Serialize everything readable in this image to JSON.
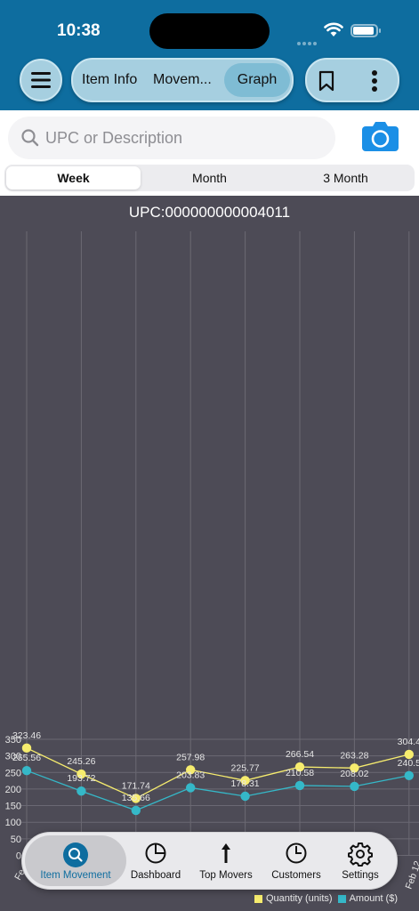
{
  "status": {
    "time": "10:38"
  },
  "nav": {
    "tabs": [
      {
        "label": "Item Info"
      },
      {
        "label": "Movem..."
      },
      {
        "label": "Graph",
        "selected": true
      }
    ]
  },
  "search": {
    "placeholder": "UPC or Description",
    "value": ""
  },
  "range": {
    "options": [
      {
        "label": "Week",
        "selected": true
      },
      {
        "label": "Month"
      },
      {
        "label": "3 Month"
      }
    ]
  },
  "chart_data": {
    "type": "line",
    "title": "UPC:000000000004011",
    "ylim": [
      0,
      370
    ],
    "yticks": [
      0,
      50,
      100,
      150,
      200,
      250,
      300,
      350
    ],
    "grid": true,
    "legend": "bottom-right",
    "x_visible": [
      "Fe",
      "Feb 12"
    ],
    "series": [
      {
        "name": "Quantity (units)",
        "color": "#f6ec6e",
        "values": [
          323.46,
          245.26,
          171.74,
          257.98,
          225.77,
          266.54,
          263.28,
          304.4
        ],
        "labels": [
          "323.46",
          "245.26",
          "171.74",
          "257.98",
          "225.77",
          "266.54",
          "263.28",
          "304.4"
        ]
      },
      {
        "name": "Amount ($)",
        "color": "#35b8c8",
        "values": [
          255.56,
          193.72,
          135.66,
          203.83,
          178.31,
          210.58,
          208.02,
          240.5
        ],
        "labels": [
          "255.56",
          "193.72",
          "135.66",
          "203.83",
          "178.31",
          "210.58",
          "208.02",
          "240.5"
        ]
      }
    ]
  },
  "tabbar": {
    "items": [
      {
        "label": "Item Movement",
        "icon": "search-icon",
        "active": true
      },
      {
        "label": "Dashboard",
        "icon": "pie-chart-icon"
      },
      {
        "label": "Top Movers",
        "icon": "arrow-up-icon"
      },
      {
        "label": "Customers",
        "icon": "pie-chart-icon"
      },
      {
        "label": "Settings",
        "icon": "gear-icon"
      }
    ]
  }
}
